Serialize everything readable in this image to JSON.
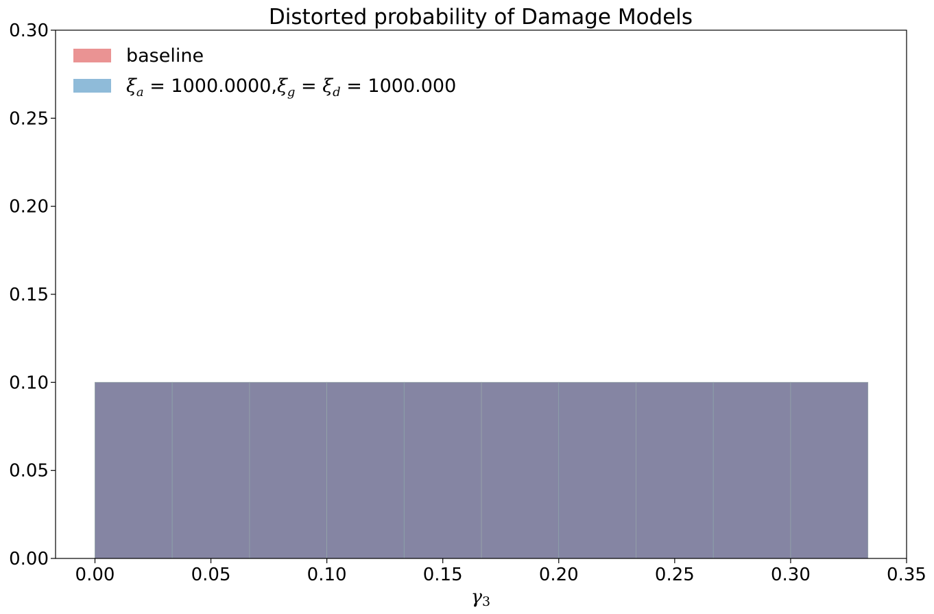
{
  "chart_data": {
    "type": "bar",
    "title": "Distorted probability of Damage Models",
    "xlabel": "γ₃",
    "ylabel": "",
    "xlim": [
      -0.017,
      0.35
    ],
    "ylim": [
      0,
      0.3
    ],
    "xticks": [
      "0.00",
      "0.05",
      "0.10",
      "0.15",
      "0.20",
      "0.25",
      "0.30",
      "0.35"
    ],
    "xtick_values": [
      0,
      0.05,
      0.1,
      0.15,
      0.2,
      0.25,
      0.3,
      0.35
    ],
    "yticks": [
      "0.00",
      "0.05",
      "0.10",
      "0.15",
      "0.20",
      "0.25",
      "0.30"
    ],
    "ytick_values": [
      0,
      0.05,
      0.1,
      0.15,
      0.2,
      0.25,
      0.3
    ],
    "bin_edges": [
      0,
      0.03333,
      0.06667,
      0.1,
      0.13333,
      0.16667,
      0.2,
      0.23333,
      0.26667,
      0.3,
      0.33333
    ],
    "series": [
      {
        "name": "baseline",
        "color": "#d62728",
        "alpha": 0.5,
        "values": [
          0.1,
          0.1,
          0.1,
          0.1,
          0.1,
          0.1,
          0.1,
          0.1,
          0.1,
          0.1
        ]
      },
      {
        "name": "ξa = 1000.0000,ξg = ξd = 1000.000",
        "color": "#1f77b4",
        "alpha": 0.5,
        "values": [
          0.1,
          0.1,
          0.1,
          0.1,
          0.1,
          0.1,
          0.1,
          0.1,
          0.1,
          0.1
        ]
      }
    ],
    "legend": {
      "placement": "top-left",
      "entries": [
        {
          "text": "baseline"
        },
        {
          "xi_a": "1000.0000",
          "xi_gd": "1000.000"
        }
      ]
    },
    "grid": false
  }
}
